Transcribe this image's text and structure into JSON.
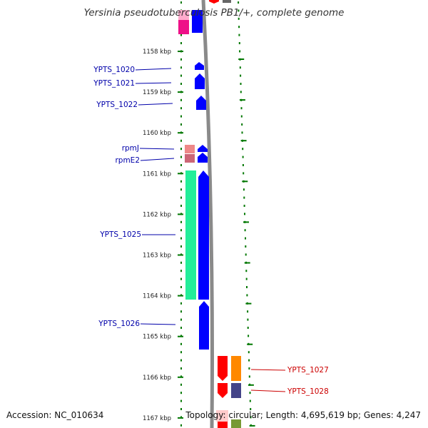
{
  "title": "Yersinia pseudotuberculosis PB1/+, complete genome",
  "footer": {
    "accession": "Accession: NC_010634",
    "summary": "Topology: circular; Length: 4,695,619 bp; Genes: 4,247"
  },
  "axis": {
    "unit": "kbp",
    "start_kbp": 1158,
    "end_kbp": 1167,
    "ticks": [
      {
        "value": 1158,
        "label": "1158 kbp"
      },
      {
        "value": 1159,
        "label": "1159 kbp"
      },
      {
        "value": 1160,
        "label": "1160 kbp"
      },
      {
        "value": 1161,
        "label": "1161 kbp"
      },
      {
        "value": 1162,
        "label": "1162 kbp"
      },
      {
        "value": 1163,
        "label": "1163 kbp"
      },
      {
        "value": 1164,
        "label": "1164 kbp"
      },
      {
        "value": 1165,
        "label": "1165 kbp"
      },
      {
        "value": 1166,
        "label": "1166 kbp"
      },
      {
        "value": 1167,
        "label": "1167 kbp"
      }
    ]
  },
  "labels": [
    {
      "text": "YPTS_1020",
      "color": "#0000aa",
      "side": "left"
    },
    {
      "text": "YPTS_1021",
      "color": "#0000aa",
      "side": "left"
    },
    {
      "text": "YPTS_1022",
      "color": "#0000aa",
      "side": "left"
    },
    {
      "text": "rpmJ",
      "color": "#0000aa",
      "side": "left"
    },
    {
      "text": "rpmE2",
      "color": "#0000aa",
      "side": "left"
    },
    {
      "text": "YPTS_1025",
      "color": "#0000aa",
      "side": "left"
    },
    {
      "text": "YPTS_1026",
      "color": "#0000aa",
      "side": "left"
    },
    {
      "text": "YPTS_1027",
      "color": "#cc0000",
      "side": "right"
    },
    {
      "text": "YPTS_1028",
      "color": "#cc0000",
      "side": "right"
    }
  ],
  "colors": {
    "forward_gene": "#0000ff",
    "reverse_gene": "#ff0000",
    "green_feature": "#22ee99",
    "pink_feature": "#ee88aa",
    "magenta_feature": "#ee1188",
    "orange_feature": "#ff8800",
    "navy_feature": "#444488",
    "olive_feature": "#779933",
    "backbone": "#8a8a8a",
    "tick_marks": "#007700"
  }
}
